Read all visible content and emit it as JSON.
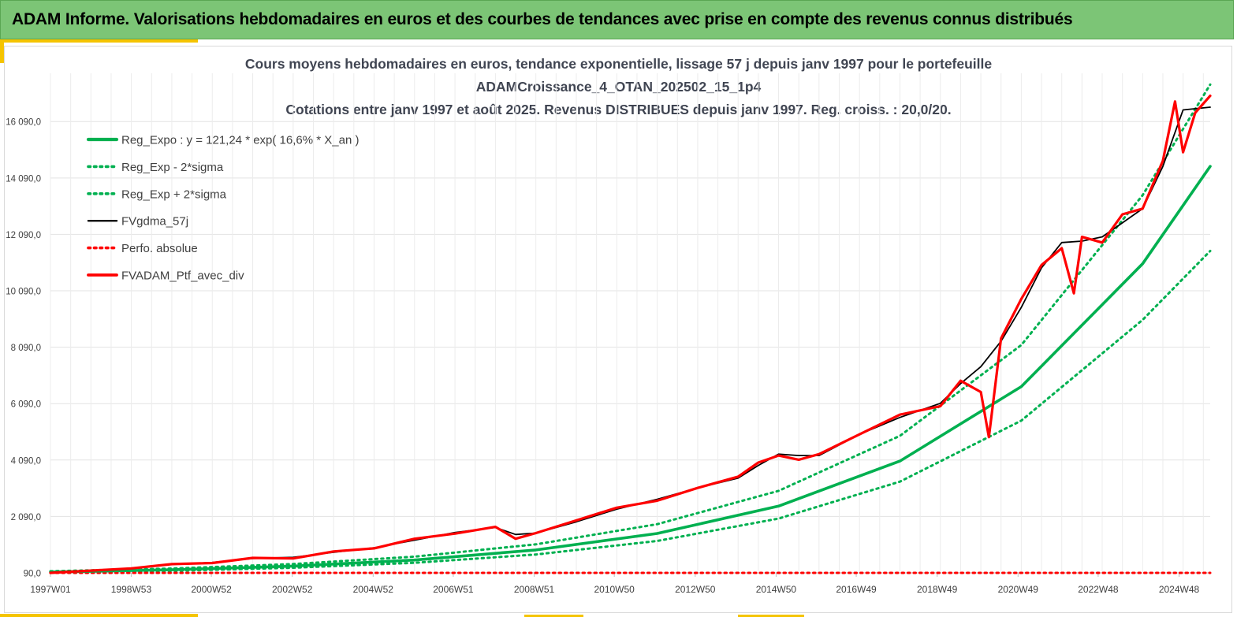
{
  "header": {
    "banner_text": "ADAM Informe. Valorisations hebdomadaires en euros et des courbes de tendances avec prise en compte des revenus connus distribués"
  },
  "colors": {
    "banner_bg": "#7cc576",
    "accent": "#f5c400",
    "reg_expo": "#00b050",
    "fvgdma": "#000000",
    "perfo": "#ff0000",
    "fvadam": "#ff0000"
  },
  "chart_data": {
    "type": "line",
    "title_lines": [
      "Cours moyens hebdomadaires  en euros, tendance exponentielle, lissage 57 j depuis janv 1997 pour le portefeuille",
      "ADAMCroissance_4_OTAN_202502_15_1p4",
      "Cotations  entre janv 1997 et août 2025. Revenus DISTRIBUES depuis janv 1997. Reg. croiss. : 20,0/20."
    ],
    "xlabel": "",
    "ylabel": "",
    "x_ticks": [
      "1997W01",
      "1998W53",
      "2000W52",
      "2002W52",
      "2004W52",
      "2006W51",
      "2008W51",
      "2010W50",
      "2012W50",
      "2014W50",
      "2016W49",
      "2018W49",
      "2020W49",
      "2022W48",
      "2024W48"
    ],
    "x_range": [
      "1997W01",
      "2025W35"
    ],
    "y_ticks": [
      "90,0",
      "2 090,0",
      "4 090,0",
      "6 090,0",
      "8 090,0",
      "10 090,0",
      "12 090,0",
      "14 090,0",
      "16 090,0"
    ],
    "ylim": [
      90,
      17800
    ],
    "grid": true,
    "legend_position": "top-left",
    "series": [
      {
        "name": "Reg_Expo : y = 121,24 * exp( 16,6% *  X_an )",
        "style": "solid-thick",
        "color": "#00b050",
        "x": [
          1997.0,
          2000.0,
          2003.0,
          2006.0,
          2009.0,
          2012.0,
          2015.0,
          2018.0,
          2021.0,
          2024.0,
          2025.67
        ],
        "y": [
          121,
          200,
          331,
          546,
          902,
          1488,
          2457,
          4055,
          6693,
          11048,
          14500
        ]
      },
      {
        "name": "Reg_Exp - 2*sigma",
        "style": "dotted",
        "color": "#00b050",
        "x": [
          1997.0,
          2000.0,
          2003.0,
          2006.0,
          2009.0,
          2012.0,
          2015.0,
          2018.0,
          2021.0,
          2024.0,
          2025.67
        ],
        "y": [
          99,
          164,
          271,
          448,
          740,
          1221,
          2015,
          3325,
          5488,
          9059,
          11500
        ]
      },
      {
        "name": "Reg_Exp + 2*sigma",
        "style": "dotted",
        "color": "#00b050",
        "x": [
          1997.0,
          2000.0,
          2003.0,
          2006.0,
          2009.0,
          2012.0,
          2015.0,
          2018.0,
          2021.0,
          2024.0,
          2025.67
        ],
        "y": [
          148,
          244,
          403,
          666,
          1100,
          1815,
          2997,
          4947,
          8166,
          13478,
          17400
        ]
      },
      {
        "name": "FVgdma_57j",
        "style": "solid",
        "color": "#000000",
        "x": [
          1997.0,
          1998.0,
          1999.0,
          2000.0,
          2001.0,
          2002.0,
          2003.0,
          2004.0,
          2005.0,
          2006.0,
          2007.0,
          2008.0,
          2008.5,
          2009.0,
          2010.0,
          2011.0,
          2012.0,
          2013.0,
          2014.0,
          2014.5,
          2015.0,
          2015.5,
          2016.0,
          2017.0,
          2018.0,
          2019.0,
          2019.5,
          2020.0,
          2020.5,
          2021.0,
          2021.5,
          2022.0,
          2022.5,
          2023.0,
          2023.5,
          2024.0,
          2024.5,
          2025.0,
          2025.67
        ],
        "y": [
          90,
          160,
          260,
          390,
          460,
          600,
          640,
          820,
          980,
          1250,
          1520,
          1700,
          1450,
          1500,
          1900,
          2350,
          2700,
          3100,
          3450,
          3900,
          4300,
          4250,
          4250,
          5000,
          5600,
          6100,
          6800,
          7400,
          8300,
          9500,
          10900,
          11800,
          11850,
          12000,
          12500,
          13000,
          14500,
          16500,
          16600
        ]
      },
      {
        "name": "Perfo. absolue",
        "style": "dotted",
        "color": "#ff0000",
        "x": [
          1997.0,
          2025.67
        ],
        "y": [
          90,
          90
        ]
      },
      {
        "name": "FVADAM_Ptf_avec_div",
        "style": "solid-thick",
        "color": "#ff0000",
        "x": [
          1997.0,
          1998.0,
          1999.0,
          2000.0,
          2001.0,
          2002.0,
          2003.0,
          2004.0,
          2005.0,
          2006.0,
          2007.0,
          2008.0,
          2008.5,
          2009.0,
          2010.0,
          2011.0,
          2012.0,
          2013.0,
          2014.0,
          2014.5,
          2015.0,
          2015.5,
          2016.0,
          2017.0,
          2018.0,
          2019.0,
          2019.5,
          2020.0,
          2020.2,
          2020.5,
          2021.0,
          2021.5,
          2022.0,
          2022.3,
          2022.5,
          2023.0,
          2023.5,
          2024.0,
          2024.5,
          2024.8,
          2025.0,
          2025.3,
          2025.67
        ],
        "y": [
          90,
          170,
          250,
          400,
          440,
          620,
          600,
          850,
          960,
          1300,
          1480,
          1720,
          1300,
          1500,
          1950,
          2400,
          2650,
          3100,
          3500,
          4000,
          4250,
          4100,
          4300,
          5000,
          5700,
          6000,
          6900,
          6500,
          4900,
          8400,
          9800,
          11000,
          11600,
          10000,
          12000,
          11800,
          12800,
          13000,
          14700,
          16800,
          15000,
          16400,
          17000
        ]
      }
    ]
  }
}
